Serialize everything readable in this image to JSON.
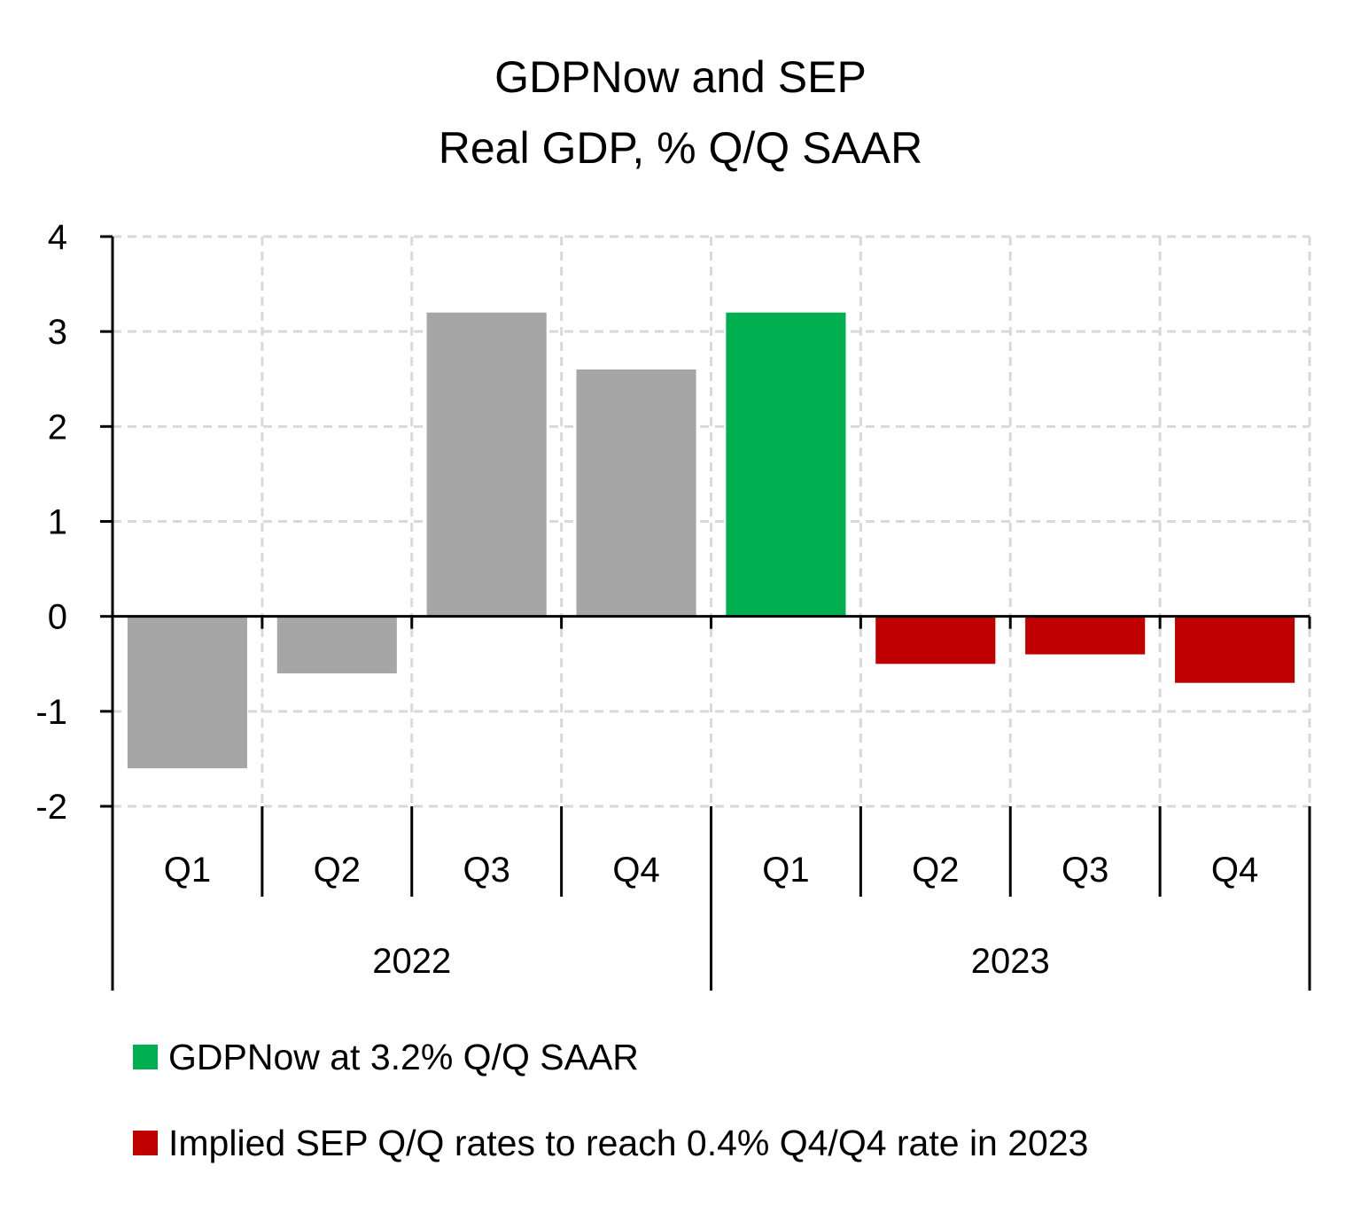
{
  "chart_data": {
    "type": "bar",
    "title": "GDPNow and SEP",
    "subtitle": "Real GDP, % Q/Q SAAR",
    "xlabel": "",
    "ylabel": "",
    "ylim": [
      -2,
      4
    ],
    "yticks": [
      4,
      3,
      2,
      1,
      0,
      -1,
      -2
    ],
    "ytick_labels": [
      "4",
      "3",
      "2",
      "1",
      "0",
      "-1",
      "-2"
    ],
    "grid": true,
    "legend_position": "bottom",
    "categories": [
      "Q1",
      "Q2",
      "Q3",
      "Q4",
      "Q1",
      "Q2",
      "Q3",
      "Q4"
    ],
    "category_groups": [
      {
        "label": "2022",
        "span": 4
      },
      {
        "label": "2023",
        "span": 4
      }
    ],
    "values": [
      -1.6,
      -0.6,
      3.2,
      2.6,
      3.2,
      -0.5,
      -0.4,
      -0.7
    ],
    "bar_colors": [
      "#a6a6a6",
      "#a6a6a6",
      "#a6a6a6",
      "#a6a6a6",
      "#00b050",
      "#c00000",
      "#c00000",
      "#c00000"
    ],
    "legend": [
      {
        "label": "GDPNow at 3.2% Q/Q SAAR",
        "color": "#00b050"
      },
      {
        "label": "Implied SEP Q/Q rates to reach 0.4% Q4/Q4 rate in 2023",
        "color": "#c00000"
      }
    ]
  }
}
